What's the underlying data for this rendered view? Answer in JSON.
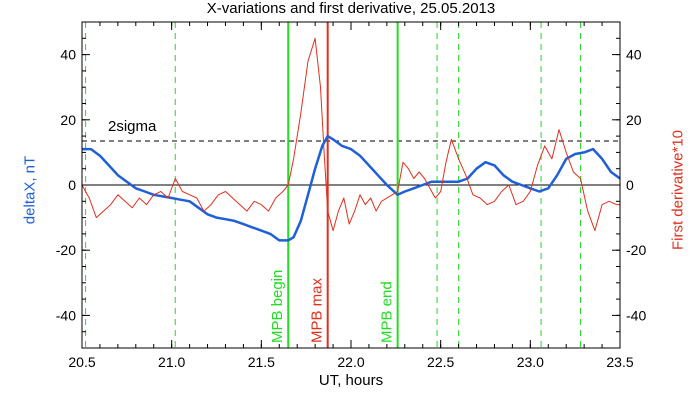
{
  "chart_data": {
    "type": "line",
    "title": "X-variations and first derivative, 25.05.2013",
    "xlabel": "UT, hours",
    "ylabel_left": "deltaX, nT",
    "ylabel_right": "First derivative*10",
    "xlim": [
      20.5,
      23.5
    ],
    "ylim": [
      -50,
      50
    ],
    "x_ticks": [
      "20.5",
      "21.0",
      "21.5",
      "22.0",
      "22.5",
      "23.0",
      "23.5"
    ],
    "y_ticks": [
      "-40",
      "-20",
      "0",
      "20",
      "40"
    ],
    "grid": false,
    "colors": {
      "deltaX": "#1f5fd8",
      "derivative": "#e0301e",
      "green": "#22dd22",
      "red": "#e0301e",
      "axis": "#000000"
    },
    "sigma_line": {
      "label": "2sigma",
      "y": 13.5
    },
    "zero_line": 0,
    "markers": [
      {
        "x": 21.65,
        "label": "MPB begin",
        "color": "#22dd22"
      },
      {
        "x": 21.87,
        "label": "MPB max",
        "color": "#e0301e"
      },
      {
        "x": 22.26,
        "label": "MPB end",
        "color": "#22dd22"
      }
    ],
    "dashed_lines": [
      20.52,
      21.02,
      21.65,
      22.48,
      22.6,
      23.06,
      23.28
    ],
    "series": [
      {
        "name": "deltaX",
        "x": [
          20.5,
          20.55,
          20.6,
          20.65,
          20.7,
          20.75,
          20.8,
          20.85,
          20.9,
          20.95,
          21.0,
          21.05,
          21.1,
          21.15,
          21.2,
          21.25,
          21.3,
          21.35,
          21.4,
          21.45,
          21.5,
          21.55,
          21.6,
          21.65,
          21.68,
          21.72,
          21.76,
          21.8,
          21.84,
          21.87,
          21.9,
          21.95,
          22.0,
          22.05,
          22.1,
          22.15,
          22.2,
          22.26,
          22.3,
          22.35,
          22.4,
          22.45,
          22.5,
          22.55,
          22.6,
          22.65,
          22.7,
          22.75,
          22.8,
          22.85,
          22.9,
          22.95,
          23.0,
          23.05,
          23.1,
          23.15,
          23.2,
          23.25,
          23.3,
          23.35,
          23.4,
          23.45,
          23.5
        ],
        "values": [
          11,
          11,
          9,
          6,
          3,
          1,
          -1,
          -2,
          -3,
          -3.5,
          -4,
          -4.5,
          -5,
          -7,
          -9,
          -10,
          -10.5,
          -11,
          -12,
          -13,
          -14,
          -15,
          -17,
          -17,
          -16,
          -11,
          -3,
          5,
          12,
          15,
          14,
          12,
          11,
          9,
          6,
          3,
          0,
          -3,
          -2,
          -1,
          0,
          1,
          1,
          1,
          1,
          2,
          5,
          7,
          6,
          3,
          1,
          0,
          -1,
          -2,
          -1,
          3,
          8,
          9.5,
          10,
          11,
          8,
          4,
          2
        ]
      },
      {
        "name": "First derivative*10",
        "x": [
          20.5,
          20.54,
          20.58,
          20.62,
          20.66,
          20.7,
          20.74,
          20.78,
          20.82,
          20.86,
          20.9,
          20.94,
          20.98,
          21.02,
          21.06,
          21.1,
          21.14,
          21.18,
          21.22,
          21.26,
          21.3,
          21.34,
          21.38,
          21.42,
          21.46,
          21.5,
          21.54,
          21.58,
          21.62,
          21.65,
          21.68,
          21.72,
          21.76,
          21.8,
          21.83,
          21.85,
          21.87,
          21.9,
          21.93,
          21.96,
          21.99,
          22.02,
          22.05,
          22.08,
          22.11,
          22.14,
          22.17,
          22.2,
          22.23,
          22.26,
          22.29,
          22.32,
          22.35,
          22.38,
          22.41,
          22.44,
          22.47,
          22.5,
          22.53,
          22.56,
          22.6,
          22.64,
          22.68,
          22.72,
          22.76,
          22.8,
          22.84,
          22.88,
          22.92,
          22.96,
          23.0,
          23.04,
          23.08,
          23.12,
          23.16,
          23.2,
          23.24,
          23.28,
          23.32,
          23.36,
          23.4,
          23.44,
          23.48,
          23.5
        ],
        "values": [
          0,
          -4,
          -10,
          -8,
          -6,
          -3,
          -5,
          -7,
          -4,
          -6,
          -3,
          -2,
          -4,
          2,
          -2,
          -3,
          -4,
          -8,
          -6,
          -3,
          -2,
          -4,
          -6,
          -8,
          -5,
          -6,
          -8,
          -4,
          -2,
          0,
          8,
          22,
          38,
          45,
          30,
          10,
          -8,
          -14,
          -8,
          -4,
          -12,
          -8,
          -3,
          -6,
          -4,
          -8,
          -5,
          -4,
          -3,
          -2,
          7,
          5,
          2,
          4,
          2,
          -1,
          -4,
          -2,
          7,
          14,
          8,
          3,
          -3,
          -4,
          -6,
          -5,
          -2,
          0,
          -6,
          -5,
          -2,
          6,
          12,
          8,
          17,
          10,
          4,
          2,
          -8,
          -14,
          -6,
          -5,
          -6,
          -6
        ]
      }
    ]
  }
}
